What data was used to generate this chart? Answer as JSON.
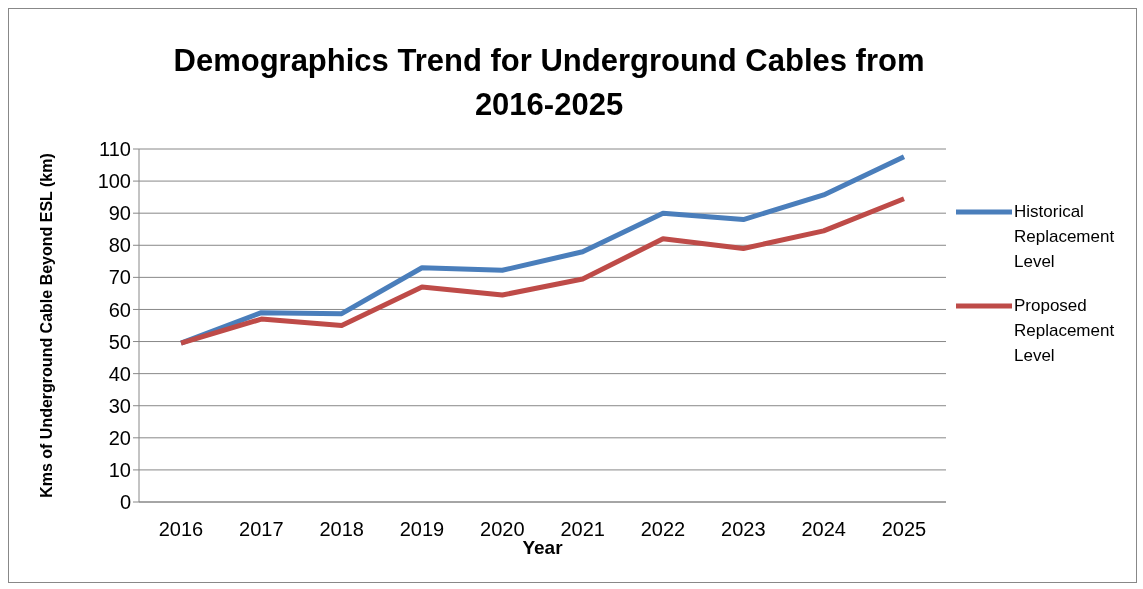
{
  "chart_data": {
    "type": "line",
    "title": "Demographics Trend for Underground Cables from 2016-2025",
    "xlabel": "Year",
    "ylabel": "Kms of Underground Cable Beyond ESL (km)",
    "categories": [
      "2016",
      "2017",
      "2018",
      "2019",
      "2020",
      "2021",
      "2022",
      "2023",
      "2024",
      "2025"
    ],
    "series": [
      {
        "name": "Historical Replacement Level",
        "color": "#4a7ebb",
        "values": [
          49.5,
          59,
          58.7,
          73,
          72.2,
          78,
          90,
          88,
          95.7,
          107.6
        ]
      },
      {
        "name": "Proposed Replacement Level",
        "color": "#be4b48",
        "values": [
          49.5,
          57,
          55,
          67,
          64.5,
          69.5,
          82,
          79,
          84.5,
          94.5
        ]
      }
    ],
    "ylim": [
      0,
      110
    ],
    "yticks": [
      0,
      10,
      20,
      30,
      40,
      50,
      60,
      70,
      80,
      90,
      100,
      110
    ],
    "grid": "y",
    "legend": "right",
    "marker": "none",
    "line_style": "solid"
  }
}
